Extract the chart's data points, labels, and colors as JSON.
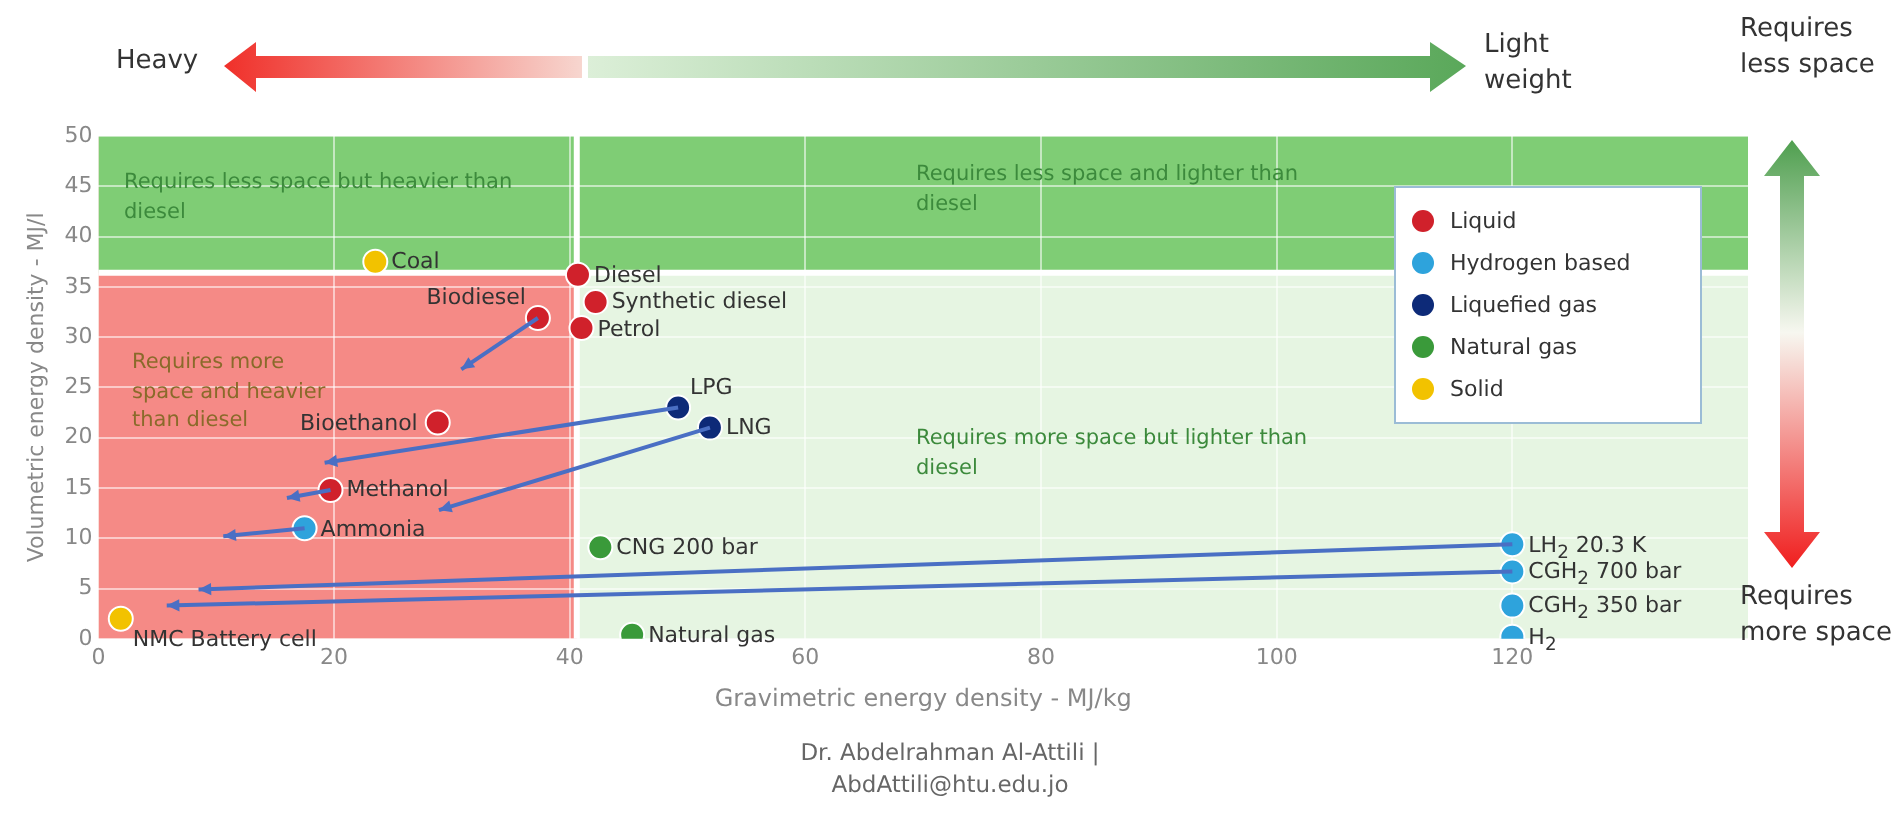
{
  "chart_data": {
    "type": "scatter",
    "xlabel": "Gravimetric energy density - MJ/kg",
    "ylabel": "Volumetric energy density - MJ/l",
    "xlim": [
      0,
      140
    ],
    "xticks": [
      0,
      20,
      40,
      60,
      80,
      100,
      120
    ],
    "ylim": [
      0,
      50
    ],
    "yticks": [
      0,
      5,
      10,
      15,
      20,
      25,
      30,
      35,
      40,
      45,
      50
    ],
    "grid": true,
    "legend": "top right",
    "marker": "circle",
    "series": [
      {
        "name": "Liquid",
        "color": "#d0212b",
        "x": [
          40.7,
          42.2,
          41,
          37.3,
          28.8,
          19.7
        ],
        "values": [
          36.2,
          33.5,
          30.9,
          31.9,
          21.5,
          14.8
        ]
      },
      {
        "name": "Hydrogen based",
        "color": "#2ea3dc",
        "x": [
          17.5,
          120,
          120,
          120,
          120
        ],
        "values": [
          11,
          9.4,
          6.7,
          3.3,
          0.2
        ]
      },
      {
        "name": "Liquefied gas",
        "color": "#0d2a78",
        "x": [
          49.2,
          51.9
        ],
        "values": [
          23,
          21
        ]
      },
      {
        "name": "Natural gas",
        "color": "#3a9a3a",
        "x": [
          42.6,
          45.3
        ],
        "values": [
          9.1,
          0.4
        ]
      },
      {
        "name": "Solid",
        "color": "#f2c200",
        "x": [
          23.5,
          1.9
        ],
        "values": [
          37.5,
          2
        ]
      }
    ],
    "ref_lines": [
      {
        "axis": "x",
        "value": 40.6,
        "color": "#ffffff"
      },
      {
        "axis": "y",
        "value": 36.4,
        "color": "#ffffff"
      }
    ],
    "bands": [
      {
        "axis": "y",
        "from": 0,
        "to": 36.4,
        "color": "#e6f5e2"
      },
      {
        "axis": "x",
        "from": 0,
        "to": 40.6,
        "color": "#f58a86"
      },
      {
        "axis": "y",
        "from": 36.4,
        "to": 50,
        "color": "#7fcd75"
      }
    ],
    "annotations": [
      "Heavy",
      "Light weight",
      "Requires less space",
      "Requires more space",
      "Requires less space but heavier than diesel",
      "Requires less space and lighter than diesel",
      "Requires more space and heavier than diesel",
      "Requires more space but lighter than diesel",
      "Dr. Abdelrahman Al-Attili | AbdAttili@htu.edu.jo",
      {
        "text": "Diesel",
        "x": 40.7,
        "y": 36.2
      },
      {
        "text": "Synthetic diesel",
        "x": 42.2,
        "y": 33.5
      },
      {
        "text": "Petrol",
        "x": 41,
        "y": 30.9
      },
      {
        "text": "Biodiesel",
        "x": 37.3,
        "y": 31.9
      },
      {
        "text": "Bioethanol",
        "x": 28.8,
        "y": 21.5
      },
      {
        "text": "Methanol",
        "x": 19.7,
        "y": 14.8
      },
      {
        "text": "Ammonia",
        "x": 17.5,
        "y": 11
      },
      {
        "text": "LH$_{2}$ 20.3 K",
        "x": 120,
        "y": 9.4
      },
      {
        "text": "CGH$_{2}$ 700 bar",
        "x": 120,
        "y": 6.7
      },
      {
        "text": "CGH$_{2}$ 350 bar",
        "x": 120,
        "y": 3.3
      },
      {
        "text": "H$_{2}$",
        "x": 120,
        "y": 0.2
      },
      {
        "text": "LPG",
        "x": 49.2,
        "y": 23
      },
      {
        "text": "LNG",
        "x": 51.9,
        "y": 21
      },
      {
        "text": "CNG 200 bar",
        "x": 42.6,
        "y": 9.1
      },
      {
        "text": "Natural gas",
        "x": 45.3,
        "y": 0.4
      },
      {
        "text": "Coal",
        "x": 23.5,
        "y": 37.5
      },
      {
        "text": "NMC Battery cell",
        "x": 1.9,
        "y": 2
      }
    ]
  }
}
